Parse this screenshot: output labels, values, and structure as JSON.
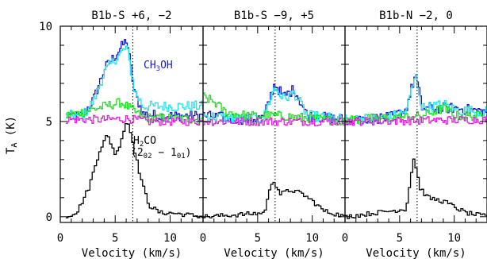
{
  "chart_data": {
    "type": "line",
    "ylabel": "T",
    "ylabel_sub": "A",
    "ylabel_unit": " (K)",
    "ylim": [
      -0.3,
      10
    ],
    "y_ticks": [
      "0",
      "5",
      "10"
    ],
    "xlim": [
      0,
      13
    ],
    "x_ticks": [
      "0",
      "5",
      "10"
    ],
    "xlabel": "Velocity (km/s)",
    "colors": {
      "ch3oh_a": "#1a1acc",
      "ch3oh_b": "#22e6e6",
      "green": "#22dd22",
      "magenta": "#dd22dd",
      "h2co": "#000000"
    },
    "annotations": {
      "ch3oh_main": "CH",
      "ch3oh_sub": "3",
      "ch3oh_tail": "OH",
      "h2co_main": "H",
      "h2co_sub": "2",
      "h2co_tail": "CO",
      "transition_open": "(2",
      "transition_sub1": "02",
      "transition_mid": " − 1",
      "transition_sub2": "01",
      "transition_close": ")"
    },
    "panels": [
      {
        "title": "B1b-S +6, −2",
        "vline": 6.6,
        "series": [
          {
            "id": "ch3oh_a",
            "offset": 5,
            "points": [
              [
                0.5,
                0.3
              ],
              [
                2,
                0.3
              ],
              [
                3,
                1.2
              ],
              [
                4,
                2.8
              ],
              [
                5,
                3.5
              ],
              [
                6,
                4.3
              ],
              [
                6.7,
                1.5
              ],
              [
                7.5,
                0.4
              ],
              [
                9,
                0.3
              ],
              [
                13,
                0.3
              ]
            ]
          },
          {
            "id": "ch3oh_b",
            "offset": 5,
            "points": [
              [
                0.5,
                0.3
              ],
              [
                2,
                0.3
              ],
              [
                3,
                1.1
              ],
              [
                4,
                2.6
              ],
              [
                5,
                3.3
              ],
              [
                6,
                3.9
              ],
              [
                6.7,
                1.6
              ],
              [
                7.5,
                0.8
              ],
              [
                13,
                0.8
              ]
            ]
          },
          {
            "id": "green",
            "offset": 5,
            "points": [
              [
                0.5,
                0.3
              ],
              [
                2,
                0.5
              ],
              [
                4,
                0.8
              ],
              [
                5.5,
                1.0
              ],
              [
                6.5,
                0.6
              ],
              [
                7.5,
                0.2
              ],
              [
                13,
                0.1
              ]
            ]
          },
          {
            "id": "magenta",
            "offset": 5,
            "points": [
              [
                0.5,
                0.1
              ],
              [
                4,
                0.1
              ],
              [
                6,
                0.15
              ],
              [
                8,
                0.0
              ],
              [
                13,
                0.0
              ]
            ]
          },
          {
            "id": "h2co",
            "offset": 0,
            "points": [
              [
                0.5,
                0
              ],
              [
                1.5,
                0.3
              ],
              [
                2.5,
                1.5
              ],
              [
                3.5,
                3.5
              ],
              [
                4.2,
                4.3
              ],
              [
                5,
                3.2
              ],
              [
                6,
                5.1
              ],
              [
                6.5,
                4.0
              ],
              [
                7,
                2.6
              ],
              [
                7.5,
                1.5
              ],
              [
                8,
                0.6
              ],
              [
                9,
                0.2
              ],
              [
                10,
                0.2
              ],
              [
                13,
                0
              ]
            ]
          }
        ]
      },
      {
        "title": "B1b-S −9, +5",
        "vline": 6.6,
        "series": [
          {
            "id": "ch3oh_a",
            "offset": 5,
            "points": [
              [
                0,
                0.3
              ],
              [
                4,
                0.1
              ],
              [
                5.5,
                0.2
              ],
              [
                6.5,
                2.0
              ],
              [
                7.3,
                1.3
              ],
              [
                8.3,
                1.7
              ],
              [
                9.5,
                0.3
              ],
              [
                13,
                0.1
              ]
            ]
          },
          {
            "id": "ch3oh_b",
            "offset": 5,
            "points": [
              [
                0,
                0.3
              ],
              [
                4,
                0.1
              ],
              [
                5.5,
                0.2
              ],
              [
                6.5,
                1.8
              ],
              [
                7.3,
                1.2
              ],
              [
                8.3,
                1.5
              ],
              [
                9.5,
                0.3
              ],
              [
                13,
                0.1
              ]
            ]
          },
          {
            "id": "green",
            "offset": 5,
            "points": [
              [
                0,
                1.3
              ],
              [
                1,
                1.0
              ],
              [
                2,
                0.5
              ],
              [
                4,
                0.3
              ],
              [
                7,
                0.3
              ],
              [
                13,
                0.0
              ]
            ]
          },
          {
            "id": "magenta",
            "offset": 5,
            "points": [
              [
                0,
                0.0
              ],
              [
                13,
                0.0
              ]
            ]
          },
          {
            "id": "h2co",
            "offset": 0,
            "points": [
              [
                0,
                0
              ],
              [
                3,
                0.1
              ],
              [
                5.5,
                0.2
              ],
              [
                6.3,
                2.0
              ],
              [
                7,
                1.2
              ],
              [
                8,
                1.4
              ],
              [
                9,
                1.2
              ],
              [
                10,
                0.8
              ],
              [
                11,
                0.3
              ],
              [
                13,
                0
              ]
            ]
          }
        ]
      },
      {
        "title": "B1b-N −2, 0",
        "vline": 6.6,
        "series": [
          {
            "id": "ch3oh_a",
            "offset": 5,
            "points": [
              [
                0,
                0.1
              ],
              [
                4,
                0.2
              ],
              [
                5.5,
                0.6
              ],
              [
                6.4,
                2.5
              ],
              [
                7,
                0.7
              ],
              [
                9,
                0.7
              ],
              [
                10,
                0.7
              ],
              [
                13,
                0.5
              ]
            ]
          },
          {
            "id": "ch3oh_b",
            "offset": 5,
            "points": [
              [
                0,
                0.1
              ],
              [
                4,
                0.2
              ],
              [
                5.5,
                0.5
              ],
              [
                6.4,
                2.4
              ],
              [
                7,
                0.7
              ],
              [
                9,
                0.9
              ],
              [
                10,
                0.6
              ],
              [
                13,
                0.5
              ]
            ]
          },
          {
            "id": "green",
            "offset": 5,
            "points": [
              [
                0,
                0.1
              ],
              [
                5,
                0.2
              ],
              [
                7,
                0.3
              ],
              [
                9,
                0.7
              ],
              [
                10,
                0.3
              ],
              [
                13,
                0.3
              ]
            ]
          },
          {
            "id": "magenta",
            "offset": 5,
            "points": [
              [
                0,
                0.0
              ],
              [
                13,
                0.1
              ]
            ]
          },
          {
            "id": "h2co",
            "offset": 0,
            "points": [
              [
                0,
                0
              ],
              [
                4,
                0.3
              ],
              [
                5.5,
                0.4
              ],
              [
                6.2,
                3.1
              ],
              [
                6.8,
                1.5
              ],
              [
                7.5,
                1.0
              ],
              [
                9,
                0.8
              ],
              [
                10,
                0.5
              ],
              [
                11,
                0.2
              ],
              [
                13,
                0
              ]
            ]
          }
        ]
      }
    ]
  }
}
